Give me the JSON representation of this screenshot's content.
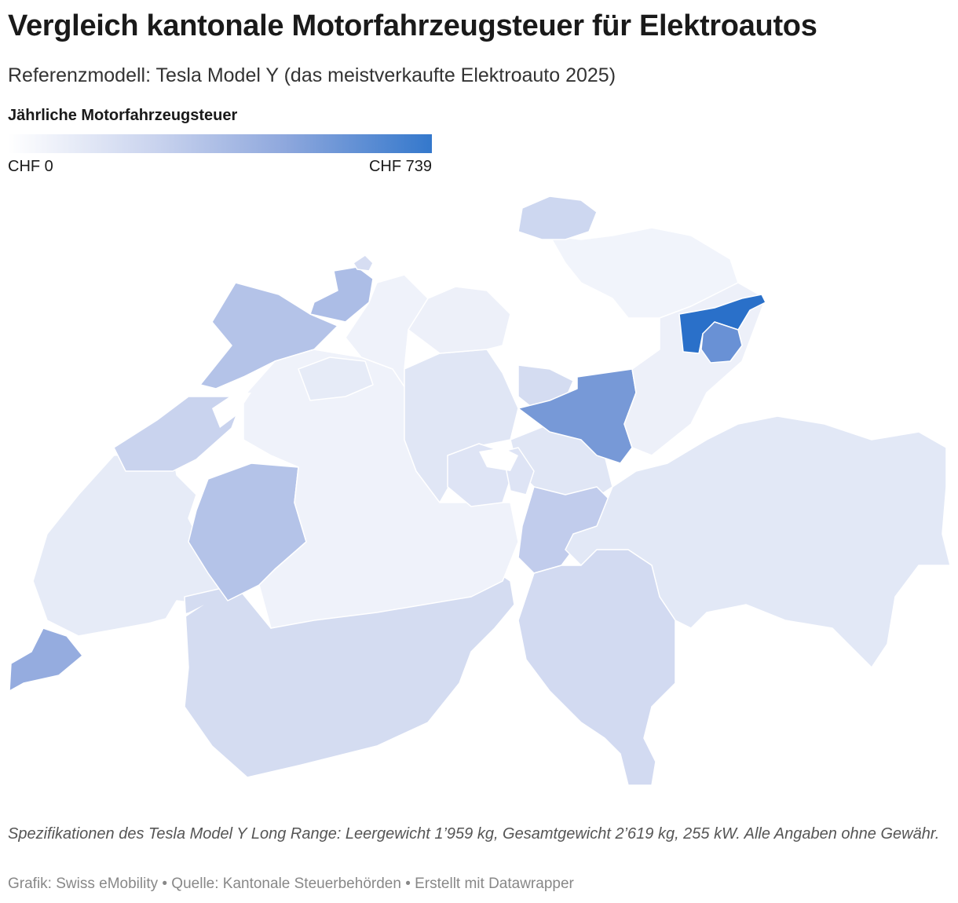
{
  "header": {
    "title": "Vergleich kantonale Motorfahrzeugsteuer für Elektroautos",
    "subtitle": "Referenzmodell: Tesla Model Y (das meistverkaufte Elektroauto 2025)"
  },
  "legend": {
    "title": "Jährliche Motorfahrzeugsteuer",
    "min_label": "CHF 0",
    "max_label": "CHF 739",
    "min_value": 0,
    "max_value": 739,
    "color_low": "#ffffff",
    "color_high": "#3478cc"
  },
  "map_data": {
    "type": "choropleth",
    "region": "Switzerland",
    "regions": [
      {
        "name": "Genève",
        "value": 420
      },
      {
        "name": "Vaud",
        "value": 70
      },
      {
        "name": "Valais",
        "value": 160
      },
      {
        "name": "Fribourg",
        "value": 300
      },
      {
        "name": "Neuchâtel",
        "value": 210
      },
      {
        "name": "Jura",
        "value": 300
      },
      {
        "name": "Bern",
        "value": 30
      },
      {
        "name": "Solothurn",
        "value": 70
      },
      {
        "name": "Basel-Landschaft",
        "value": 330
      },
      {
        "name": "Basel-Stadt",
        "value": 150
      },
      {
        "name": "Aargau",
        "value": 30
      },
      {
        "name": "Luzern",
        "value": 100
      },
      {
        "name": "Zug",
        "value": 160
      },
      {
        "name": "Schwyz",
        "value": 100
      },
      {
        "name": "Nidwalden",
        "value": 110
      },
      {
        "name": "Obwalden",
        "value": 110
      },
      {
        "name": "Uri",
        "value": 250
      },
      {
        "name": "Glarus",
        "value": 520
      },
      {
        "name": "Zürich",
        "value": 20
      },
      {
        "name": "Schaffhausen",
        "value": 190
      },
      {
        "name": "Thurgau",
        "value": 40
      },
      {
        "name": "St. Gallen",
        "value": 40
      },
      {
        "name": "Appenzell Ausserrhoden",
        "value": 739
      },
      {
        "name": "Appenzell Innerrhoden",
        "value": 560
      },
      {
        "name": "Graubünden",
        "value": 90
      },
      {
        "name": "Ticino",
        "value": 170
      }
    ]
  },
  "note": " Spezifikationen des Tesla Model Y Long Range: Leergewicht 1’959 kg, Gesamtgewicht 2’619 kg, 255 kW. Alle Angaben ohne Gewähr.",
  "footer": "Grafik: Swiss eMobility • Quelle: Kantonale Steuerbehörden • Erstellt mit Datawrapper"
}
